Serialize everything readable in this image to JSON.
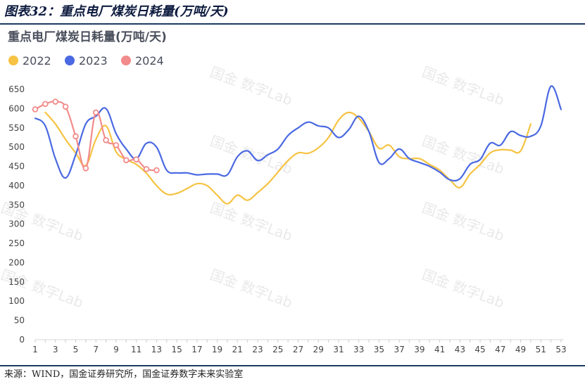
{
  "figure": {
    "title": "图表32：重点电厂煤炭日耗量(万吨/天)",
    "source": "来源：WIND，国金证券研究所，国金证券数字未来实验室",
    "watermark": "国金 数字Lab"
  },
  "chart_data": {
    "type": "line",
    "title": "重点电厂煤炭日耗量(万吨/天)",
    "xlabel": "",
    "ylabel": "",
    "x_ticks": [
      "1",
      "3",
      "5",
      "7",
      "9",
      "11",
      "13",
      "15",
      "17",
      "19",
      "21",
      "23",
      "25",
      "27",
      "29",
      "31",
      "33",
      "35",
      "37",
      "39",
      "41",
      "43",
      "45",
      "47",
      "49",
      "51",
      "53"
    ],
    "y_ticks": [
      "0",
      "50",
      "100",
      "150",
      "200",
      "250",
      "300",
      "350",
      "400",
      "450",
      "500",
      "550",
      "600",
      "650"
    ],
    "xlim": [
      1,
      53
    ],
    "ylim": [
      0,
      650
    ],
    "grid": "none",
    "legend": "top-left",
    "series": [
      {
        "name": "2022",
        "color": "#f6c342",
        "markers": false,
        "x": [
          2,
          3,
          4,
          5,
          6,
          7,
          8,
          9,
          10,
          11,
          12,
          13,
          14,
          15,
          16,
          17,
          18,
          19,
          20,
          21,
          22,
          23,
          24,
          25,
          26,
          27,
          28,
          29,
          30,
          31,
          32,
          33,
          34,
          35,
          36,
          37,
          38,
          39,
          40,
          41,
          42,
          43,
          44,
          45,
          46,
          47,
          48,
          49,
          50
        ],
        "y": [
          590,
          560,
          520,
          485,
          452,
          520,
          555,
          488,
          468,
          455,
          432,
          400,
          378,
          380,
          392,
          405,
          400,
          375,
          353,
          375,
          362,
          382,
          405,
          435,
          465,
          485,
          484,
          498,
          525,
          570,
          590,
          575,
          540,
          497,
          505,
          475,
          470,
          470,
          455,
          440,
          415,
          395,
          430,
          455,
          485,
          493,
          492,
          490,
          560
        ]
      },
      {
        "name": "2023",
        "color": "#4a69e2",
        "markers": false,
        "x": [
          1,
          2,
          3,
          4,
          5,
          6,
          7,
          8,
          9,
          10,
          11,
          12,
          13,
          14,
          15,
          16,
          17,
          18,
          19,
          20,
          21,
          22,
          23,
          24,
          25,
          26,
          27,
          28,
          29,
          30,
          31,
          32,
          33,
          34,
          35,
          36,
          37,
          38,
          39,
          40,
          41,
          42,
          43,
          44,
          45,
          46,
          47,
          48,
          49,
          50,
          51,
          52,
          53
        ],
        "y": [
          575,
          555,
          470,
          420,
          480,
          560,
          580,
          600,
          535,
          495,
          470,
          510,
          500,
          440,
          433,
          433,
          428,
          430,
          430,
          428,
          475,
          490,
          465,
          480,
          495,
          530,
          550,
          565,
          555,
          550,
          525,
          545,
          580,
          540,
          460,
          470,
          495,
          470,
          460,
          450,
          435,
          415,
          418,
          455,
          468,
          510,
          505,
          540,
          530,
          528,
          555,
          658,
          598
        ]
      },
      {
        "name": "2024",
        "color": "#f28b8b",
        "markers": true,
        "x": [
          1,
          2,
          3,
          4,
          5,
          6,
          7,
          8,
          9,
          10,
          11,
          12,
          13
        ],
        "y": [
          598,
          612,
          618,
          605,
          528,
          445,
          590,
          518,
          505,
          466,
          468,
          443,
          440
        ]
      }
    ]
  }
}
